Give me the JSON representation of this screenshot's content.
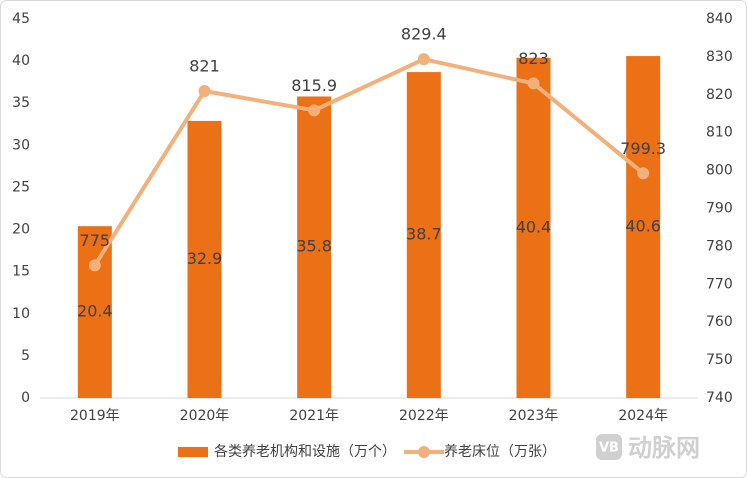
{
  "chart_data": {
    "type": "bar-line",
    "categories": [
      "2019年",
      "2020年",
      "2021年",
      "2022年",
      "2023年",
      "2024年"
    ],
    "series": [
      {
        "name": "各类养老机构和设施（万个）",
        "type": "bar",
        "color": "#eb7016",
        "values": [
          20.4,
          32.9,
          35.8,
          38.7,
          40.4,
          40.6
        ]
      },
      {
        "name": "养老床位（万张）",
        "type": "line",
        "axis": "y2",
        "color": "#f4b07a",
        "values": [
          775,
          821,
          815.9,
          829.4,
          823,
          799.3
        ]
      }
    ],
    "ylim": [
      0,
      45
    ],
    "yticks": [
      0,
      5,
      10,
      15,
      20,
      25,
      30,
      35,
      40,
      45
    ],
    "y2lim": [
      740,
      840
    ],
    "y2ticks": [
      740,
      750,
      760,
      770,
      780,
      790,
      800,
      810,
      820,
      830,
      840
    ],
    "legend": "bottom",
    "watermark": "动脉网"
  }
}
